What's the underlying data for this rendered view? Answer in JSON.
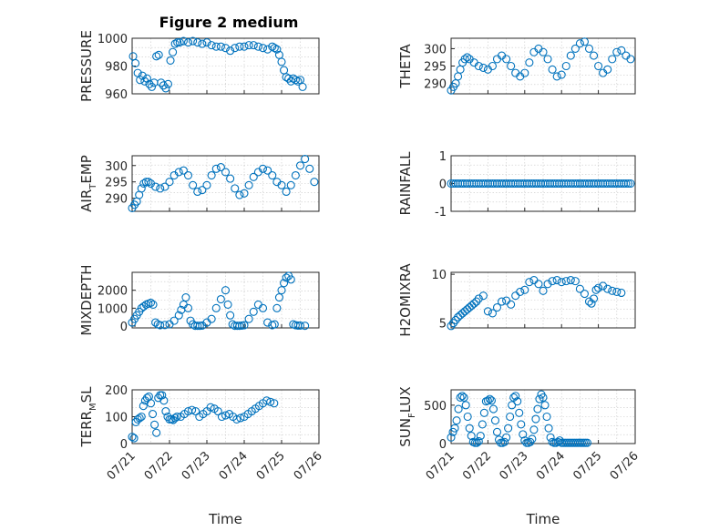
{
  "figure_title": "Figure 2 medium",
  "colors": {
    "marker": "#0072BD",
    "axis": "#262626"
  },
  "chart_data": [
    {
      "type": "scatter",
      "name": "pressure",
      "title": "Figure 2 medium",
      "ylabel": "PRESSURE",
      "ylabel_sub": "",
      "ylabel_tail": "",
      "xlabel": "",
      "ylim": [
        960,
        1000
      ],
      "yticks": [
        960,
        980,
        1000
      ],
      "xlim": [
        0,
        4
      ],
      "show_xticklabels": false,
      "x": [
        0.02,
        0.07,
        0.12,
        0.17,
        0.22,
        0.27,
        0.32,
        0.37,
        0.42,
        0.47,
        0.52,
        0.57,
        0.62,
        0.67,
        0.72,
        0.77,
        0.82,
        0.87,
        0.92,
        0.97,
        1.02,
        1.1,
        1.2,
        1.3,
        1.4,
        1.5,
        1.6,
        1.7,
        1.8,
        1.9,
        2.0,
        2.1,
        2.2,
        2.3,
        2.4,
        2.5,
        2.6,
        2.7,
        2.8,
        2.9,
        3.0,
        3.05,
        3.1,
        3.15,
        3.2,
        3.25,
        3.3,
        3.35,
        3.4,
        3.45,
        3.5,
        3.55,
        3.6,
        3.65
      ],
      "y": [
        987,
        982,
        975,
        970,
        973,
        969,
        971,
        967,
        965,
        968,
        987,
        988,
        968,
        966,
        964,
        967,
        984,
        990,
        996,
        997,
        997,
        998,
        997,
        998,
        997,
        996,
        997,
        995,
        994,
        994,
        993,
        991,
        993,
        994,
        994,
        995,
        995,
        994,
        993,
        992,
        994,
        993,
        992,
        988,
        983,
        977,
        972,
        971,
        969,
        971,
        970,
        969,
        970,
        965
      ]
    },
    {
      "type": "scatter",
      "name": "theta",
      "title": "",
      "ylabel": "THETA",
      "ylabel_sub": "",
      "ylabel_tail": "",
      "xlabel": "",
      "ylim": [
        287,
        303
      ],
      "yticks": [
        290,
        295,
        300
      ],
      "xlim": [
        0,
        4
      ],
      "show_xticklabels": false,
      "x": [
        0.0,
        0.05,
        0.1,
        0.15,
        0.2,
        0.25,
        0.3,
        0.35,
        0.4,
        0.5,
        0.6,
        0.7,
        0.8,
        0.9,
        1.0,
        1.1,
        1.2,
        1.3,
        1.4,
        1.5,
        1.6,
        1.7,
        1.8,
        1.9,
        2.0,
        2.1,
        2.2,
        2.3,
        2.4,
        2.5,
        2.6,
        2.7,
        2.8,
        2.9,
        3.0,
        3.1,
        3.2,
        3.3,
        3.4,
        3.5,
        3.6,
        3.7,
        3.8,
        3.9
      ],
      "y": [
        288,
        289,
        290,
        292,
        294,
        296,
        297,
        297.5,
        297,
        296,
        295,
        294.5,
        294,
        295,
        297,
        298,
        297,
        295,
        293,
        292,
        293,
        296,
        299,
        300,
        299,
        297,
        294,
        292,
        292.5,
        295,
        298,
        300,
        301.5,
        302,
        300,
        298,
        295,
        293,
        294,
        297,
        299,
        299.5,
        298,
        297
      ]
    },
    {
      "type": "scatter",
      "name": "air_temp",
      "title": "",
      "ylabel": "AIR",
      "ylabel_sub": "T",
      "ylabel_tail": "EMP",
      "xlabel": "",
      "ylim": [
        286,
        303
      ],
      "yticks": [
        290,
        295,
        300
      ],
      "xlim": [
        0,
        4
      ],
      "show_xticklabels": false,
      "x": [
        0.0,
        0.05,
        0.1,
        0.15,
        0.2,
        0.25,
        0.3,
        0.35,
        0.4,
        0.5,
        0.6,
        0.7,
        0.8,
        0.9,
        1.0,
        1.1,
        1.2,
        1.3,
        1.4,
        1.5,
        1.6,
        1.7,
        1.8,
        1.9,
        2.0,
        2.1,
        2.2,
        2.3,
        2.4,
        2.5,
        2.6,
        2.7,
        2.8,
        2.9,
        3.0,
        3.1,
        3.2,
        3.3,
        3.4,
        3.5,
        3.6,
        3.7,
        3.8,
        3.9
      ],
      "y": [
        287,
        288,
        289,
        291,
        293,
        294.5,
        295,
        295,
        294.5,
        293.5,
        293,
        293.5,
        295,
        297,
        298,
        298.5,
        297,
        294,
        292,
        292.5,
        294,
        297,
        299,
        299.5,
        298,
        296,
        293,
        291,
        291.5,
        294,
        296.5,
        298,
        299,
        298.5,
        297,
        295,
        294,
        292,
        294,
        297,
        300,
        302,
        299,
        295
      ]
    },
    {
      "type": "scatter",
      "name": "rainfall",
      "title": "",
      "ylabel": "RAINFALL",
      "ylabel_sub": "",
      "ylabel_tail": "",
      "xlabel": "",
      "ylim": [
        -1,
        1
      ],
      "yticks": [
        -1,
        0,
        1
      ],
      "xlim": [
        0,
        4
      ],
      "show_xticklabels": false,
      "x": [
        0.0,
        0.05,
        0.1,
        0.15,
        0.2,
        0.25,
        0.3,
        0.35,
        0.4,
        0.45,
        0.5,
        0.55,
        0.6,
        0.65,
        0.7,
        0.75,
        0.8,
        0.85,
        0.9,
        0.95,
        1.0,
        1.05,
        1.1,
        1.15,
        1.2,
        1.25,
        1.3,
        1.35,
        1.4,
        1.45,
        1.5,
        1.55,
        1.6,
        1.65,
        1.7,
        1.75,
        1.8,
        1.85,
        1.9,
        1.95,
        2.0,
        2.05,
        2.1,
        2.15,
        2.2,
        2.25,
        2.3,
        2.35,
        2.4,
        2.45,
        2.5,
        2.55,
        2.6,
        2.65,
        2.7,
        2.75,
        2.8,
        2.85,
        2.9,
        2.95,
        3.0,
        3.05,
        3.1,
        3.15,
        3.2,
        3.25,
        3.3,
        3.35,
        3.4,
        3.45,
        3.5,
        3.55,
        3.6,
        3.65,
        3.7,
        3.75,
        3.8,
        3.85,
        3.9
      ],
      "y": [
        0,
        0,
        0,
        0,
        0,
        0,
        0,
        0,
        0,
        0,
        0,
        0,
        0,
        0,
        0,
        0,
        0,
        0,
        0,
        0,
        0,
        0,
        0,
        0,
        0,
        0,
        0,
        0,
        0,
        0,
        0,
        0,
        0,
        0,
        0,
        0,
        0,
        0,
        0,
        0,
        0,
        0,
        0,
        0,
        0,
        0,
        0,
        0,
        0,
        0,
        0,
        0,
        0,
        0,
        0,
        0,
        0,
        0,
        0,
        0,
        0,
        0,
        0,
        0,
        0,
        0,
        0,
        0,
        0,
        0,
        0,
        0,
        0,
        0,
        0,
        0,
        0,
        0,
        0
      ]
    },
    {
      "type": "scatter",
      "name": "mixdepth",
      "title": "",
      "ylabel": "MIXDEPTH",
      "ylabel_sub": "",
      "ylabel_tail": "",
      "xlabel": "",
      "ylim": [
        -100,
        3000
      ],
      "yticks": [
        0,
        1000,
        2000
      ],
      "xlim": [
        0,
        4
      ],
      "show_xticklabels": false,
      "x": [
        0.0,
        0.05,
        0.1,
        0.15,
        0.2,
        0.25,
        0.3,
        0.35,
        0.4,
        0.45,
        0.5,
        0.55,
        0.6,
        0.7,
        0.8,
        0.9,
        1.0,
        1.05,
        1.1,
        1.15,
        1.2,
        1.25,
        1.3,
        1.35,
        1.4,
        1.45,
        1.5,
        1.6,
        1.7,
        1.8,
        1.9,
        2.0,
        2.05,
        2.1,
        2.15,
        2.2,
        2.25,
        2.3,
        2.35,
        2.4,
        2.5,
        2.6,
        2.7,
        2.8,
        2.9,
        3.0,
        3.05,
        3.1,
        3.15,
        3.2,
        3.25,
        3.3,
        3.35,
        3.4,
        3.45,
        3.5,
        3.55,
        3.6,
        3.7
      ],
      "y": [
        200,
        400,
        600,
        800,
        1000,
        1100,
        1200,
        1250,
        1300,
        1200,
        200,
        100,
        50,
        60,
        100,
        300,
        600,
        900,
        1200,
        1600,
        1000,
        300,
        100,
        20,
        20,
        20,
        30,
        200,
        400,
        1000,
        1500,
        2000,
        1200,
        600,
        100,
        20,
        20,
        20,
        30,
        50,
        400,
        800,
        1200,
        1000,
        200,
        50,
        100,
        1000,
        1600,
        2000,
        2400,
        2700,
        2800,
        2600,
        100,
        50,
        30,
        30,
        20
      ]
    },
    {
      "type": "scatter",
      "name": "h2omixra",
      "title": "",
      "ylabel": "H2OMIXRA",
      "ylabel_sub": "",
      "ylabel_tail": "",
      "xlabel": "",
      "ylim": [
        4.5,
        10.2
      ],
      "yticks": [
        5,
        10
      ],
      "xlim": [
        0,
        4
      ],
      "show_xticklabels": false,
      "x": [
        0.0,
        0.05,
        0.1,
        0.15,
        0.2,
        0.25,
        0.3,
        0.35,
        0.4,
        0.45,
        0.5,
        0.55,
        0.6,
        0.7,
        0.8,
        0.9,
        1.0,
        1.1,
        1.2,
        1.3,
        1.4,
        1.5,
        1.6,
        1.7,
        1.8,
        1.9,
        2.0,
        2.1,
        2.2,
        2.3,
        2.4,
        2.5,
        2.6,
        2.7,
        2.8,
        2.9,
        3.0,
        3.05,
        3.1,
        3.15,
        3.2,
        3.3,
        3.4,
        3.5,
        3.6,
        3.7
      ],
      "y": [
        4.7,
        5.0,
        5.3,
        5.6,
        5.8,
        6.0,
        6.2,
        6.4,
        6.6,
        6.8,
        7.0,
        7.2,
        7.5,
        7.8,
        6.2,
        6.0,
        6.6,
        7.2,
        7.3,
        6.9,
        7.8,
        8.2,
        8.4,
        9.2,
        9.4,
        9.0,
        8.3,
        9.0,
        9.3,
        9.4,
        9.2,
        9.3,
        9.4,
        9.3,
        8.5,
        8.0,
        7.2,
        7.0,
        7.5,
        8.4,
        8.6,
        8.8,
        8.5,
        8.3,
        8.2,
        8.1
      ]
    },
    {
      "type": "scatter",
      "name": "terr_msl",
      "title": "",
      "ylabel": "TERR",
      "ylabel_sub": "M",
      "ylabel_tail": "SL",
      "xlabel": "Time",
      "ylim": [
        0,
        200
      ],
      "yticks": [
        0,
        100,
        200
      ],
      "xlim": [
        0,
        5
      ],
      "xticklabels": [
        "07/21",
        "07/22",
        "07/23",
        "07/24",
        "07/25",
        "07/26"
      ],
      "show_xticklabels": true,
      "x": [
        0.0,
        0.05,
        0.1,
        0.15,
        0.2,
        0.25,
        0.3,
        0.35,
        0.4,
        0.45,
        0.5,
        0.55,
        0.6,
        0.65,
        0.7,
        0.75,
        0.8,
        0.85,
        0.9,
        0.95,
        1.0,
        1.05,
        1.1,
        1.15,
        1.2,
        1.3,
        1.4,
        1.5,
        1.6,
        1.7,
        1.8,
        1.9,
        2.0,
        2.1,
        2.2,
        2.3,
        2.4,
        2.5,
        2.6,
        2.7,
        2.8,
        2.9,
        3.0,
        3.1,
        3.2,
        3.3,
        3.4,
        3.5,
        3.6,
        3.7,
        3.8
      ],
      "y": [
        25,
        20,
        80,
        90,
        95,
        100,
        140,
        160,
        170,
        175,
        150,
        110,
        70,
        40,
        170,
        180,
        180,
        160,
        120,
        100,
        90,
        90,
        88,
        95,
        100,
        100,
        110,
        120,
        125,
        120,
        100,
        110,
        120,
        135,
        130,
        120,
        100,
        105,
        110,
        100,
        90,
        95,
        100,
        110,
        120,
        130,
        140,
        150,
        160,
        155,
        150
      ]
    },
    {
      "type": "scatter",
      "name": "sun_flux",
      "title": "",
      "ylabel": "SUN",
      "ylabel_sub": "F",
      "ylabel_tail": "LUX",
      "xlabel": "Time",
      "ylim": [
        0,
        700
      ],
      "yticks": [
        0,
        500
      ],
      "xlim": [
        0,
        5
      ],
      "xticklabels": [
        "07/21",
        "07/22",
        "07/23",
        "07/24",
        "07/25",
        "07/26"
      ],
      "show_xticklabels": true,
      "x": [
        0.0,
        0.05,
        0.1,
        0.15,
        0.2,
        0.25,
        0.3,
        0.35,
        0.4,
        0.45,
        0.5,
        0.55,
        0.6,
        0.65,
        0.7,
        0.75,
        0.8,
        0.85,
        0.9,
        0.95,
        1.0,
        1.05,
        1.1,
        1.15,
        1.2,
        1.25,
        1.3,
        1.35,
        1.4,
        1.45,
        1.5,
        1.55,
        1.6,
        1.65,
        1.7,
        1.75,
        1.8,
        1.85,
        1.9,
        1.95,
        2.0,
        2.05,
        2.1,
        2.15,
        2.2,
        2.25,
        2.3,
        2.35,
        2.4,
        2.45,
        2.5,
        2.55,
        2.6,
        2.65,
        2.7,
        2.75,
        2.8,
        2.85,
        2.9,
        2.95,
        3.0,
        3.05,
        3.1,
        3.15,
        3.2,
        3.25,
        3.3,
        3.35,
        3.4,
        3.45,
        3.5,
        3.55,
        3.6,
        3.65,
        3.7
      ],
      "y": [
        80,
        150,
        200,
        300,
        450,
        600,
        620,
        600,
        500,
        350,
        200,
        100,
        20,
        10,
        10,
        30,
        100,
        250,
        400,
        550,
        560,
        580,
        560,
        450,
        300,
        150,
        50,
        10,
        10,
        20,
        80,
        200,
        350,
        500,
        600,
        620,
        550,
        400,
        250,
        120,
        40,
        10,
        10,
        20,
        60,
        180,
        320,
        450,
        580,
        640,
        600,
        500,
        350,
        200,
        80,
        20,
        10,
        10,
        20,
        40,
        10,
        10,
        10,
        10,
        10,
        10,
        10,
        10,
        10,
        10,
        10,
        10,
        10,
        10,
        10
      ]
    }
  ]
}
